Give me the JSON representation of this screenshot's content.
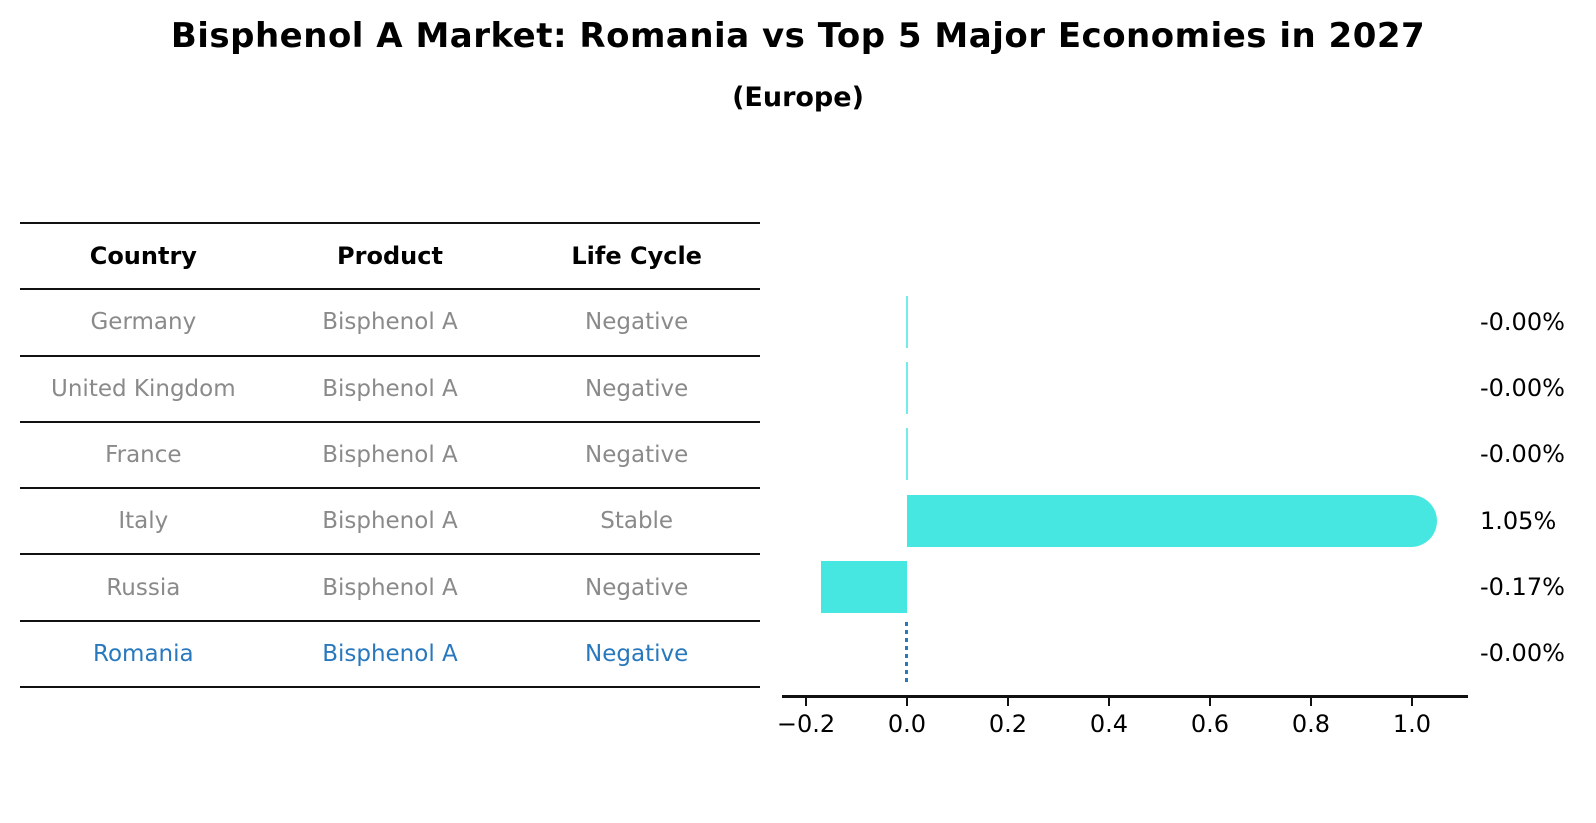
{
  "title": "Bisphenol A Market: Romania vs Top 5 Major Economies in 2027",
  "subtitle": "(Europe)",
  "table": {
    "headers": [
      "Country",
      "Product",
      "Life Cycle"
    ],
    "rows": [
      {
        "country": "Germany",
        "product": "Bisphenol A",
        "life_cycle": "Negative",
        "highlight": false
      },
      {
        "country": "United Kingdom",
        "product": "Bisphenol A",
        "life_cycle": "Negative",
        "highlight": false
      },
      {
        "country": "France",
        "product": "Bisphenol A",
        "life_cycle": "Negative",
        "highlight": false
      },
      {
        "country": "Italy",
        "product": "Bisphenol A",
        "life_cycle": "Stable",
        "highlight": false
      },
      {
        "country": "Russia",
        "product": "Bisphenol A",
        "life_cycle": "Negative",
        "highlight": false
      },
      {
        "country": "Romania",
        "product": "Bisphenol A",
        "life_cycle": "Negative",
        "highlight": true
      }
    ]
  },
  "chart_data": {
    "type": "bar",
    "orientation": "horizontal",
    "title": "Bisphenol A Market: Romania vs Top 5 Major Economies in 2027 (Europe)",
    "categories": [
      "Germany",
      "United Kingdom",
      "France",
      "Italy",
      "Russia",
      "Romania"
    ],
    "values": [
      -0.0,
      -0.0,
      -0.0,
      1.05,
      -0.17,
      -0.0
    ],
    "value_labels": [
      "-0.00%",
      "-0.00%",
      "-0.00%",
      "1.05%",
      "-0.17%",
      "-0.00%"
    ],
    "unit": "percent",
    "x_tick_labels": [
      "−0.2",
      "0.0",
      "0.2",
      "0.4",
      "0.6",
      "0.8",
      "1.0"
    ],
    "x_tick_values": [
      -0.2,
      0.0,
      0.2,
      0.4,
      0.6,
      0.8,
      1.0
    ],
    "xlim": [
      -0.2475,
      1.111
    ],
    "grid": false,
    "legend": "none",
    "highlight_index": 5,
    "highlight_style": "dashed-vertical-line-at-zero",
    "bar_color": "#46e6e1",
    "highlight_line_color": "#2878be"
  },
  "colors": {
    "background": "#ffffff",
    "table_line": "#111111",
    "table_text": "#8a8a8a",
    "header_text": "#000000",
    "highlight_text": "#2878be",
    "bar": "#46e6e1",
    "axis": "#111111"
  }
}
